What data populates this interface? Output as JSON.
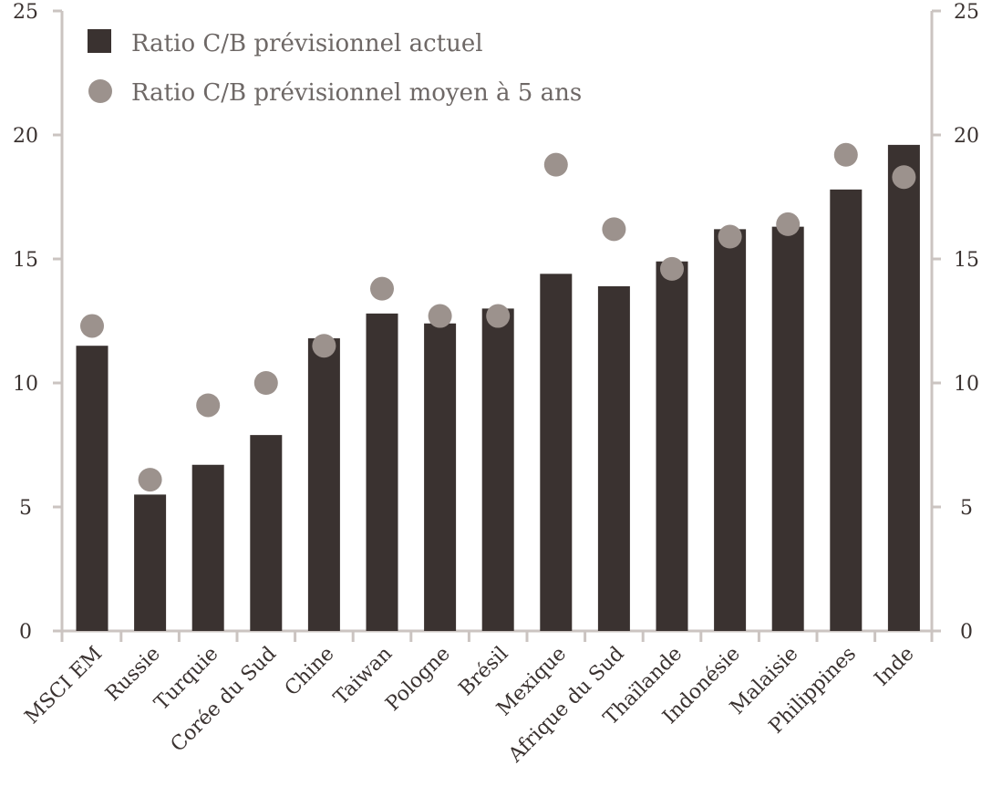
{
  "chart_data": {
    "type": "bar",
    "categories": [
      "MSCI EM",
      "Russie",
      "Turquie",
      "Corée du Sud",
      "Chine",
      "Taiwan",
      "Pologne",
      "Brésil",
      "Mexique",
      "Afrique du Sud",
      "Thaïlande",
      "Indonésie",
      "Malaisie",
      "Philippines",
      "Inde"
    ],
    "series": [
      {
        "name": "Ratio C/B prévisionnel actuel",
        "kind": "bar",
        "color": "#3a3230",
        "values": [
          11.5,
          5.5,
          6.7,
          7.9,
          11.8,
          12.8,
          12.4,
          13.0,
          14.4,
          13.9,
          14.9,
          16.2,
          16.3,
          17.8,
          19.6
        ]
      },
      {
        "name": "Ratio C/B prévisionnel moyen à 5 ans",
        "kind": "point",
        "color": "#9c928d",
        "values": [
          12.3,
          6.1,
          9.1,
          10.0,
          11.5,
          13.8,
          12.7,
          12.7,
          18.8,
          16.2,
          14.6,
          15.9,
          16.4,
          19.2,
          18.3
        ]
      }
    ],
    "ylim": [
      0,
      25
    ],
    "yticks": [
      0,
      5,
      10,
      15,
      20,
      25
    ],
    "ytick_labels": [
      "0",
      "5",
      "10",
      "15",
      "20",
      "25"
    ],
    "dual_y_axis": true,
    "legend_position": "top-left",
    "grid": false,
    "xlabel": "",
    "ylabel": ""
  }
}
